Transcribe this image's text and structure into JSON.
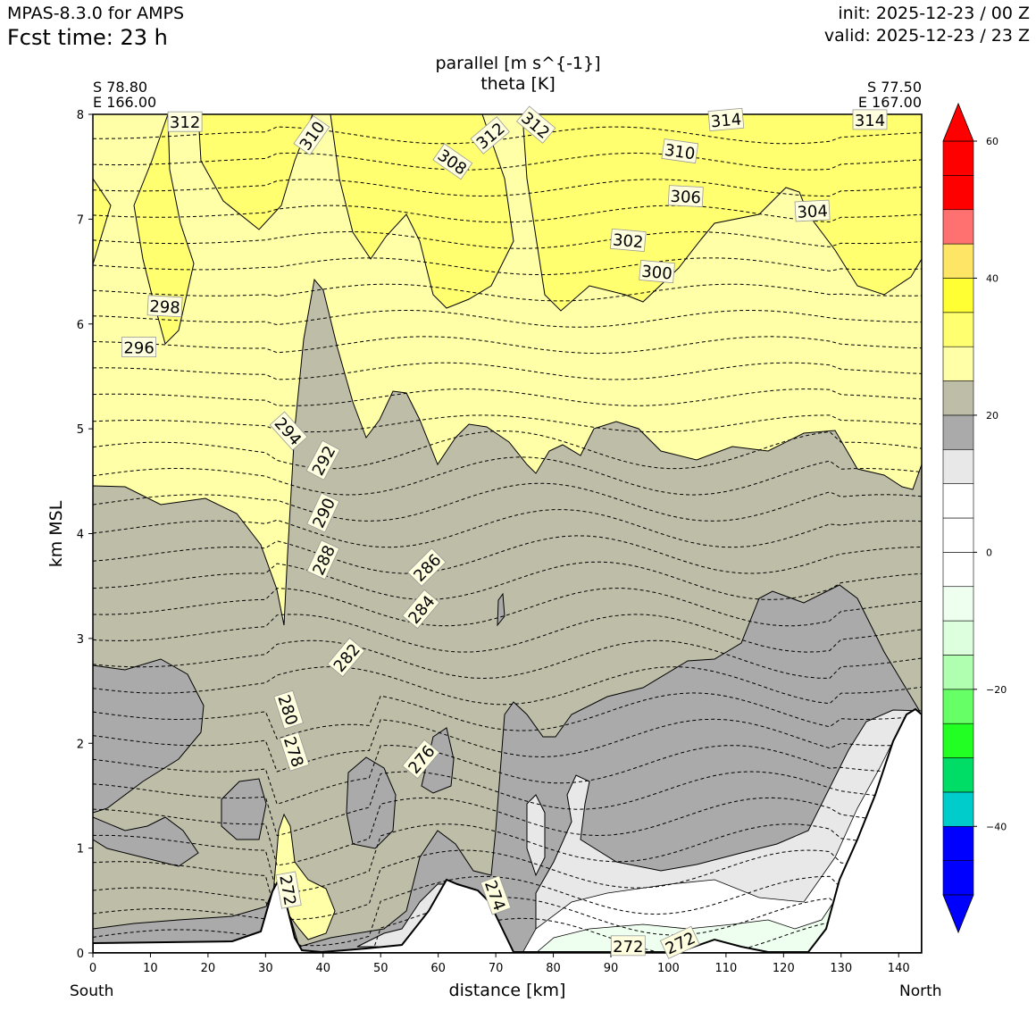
{
  "header": {
    "model": "MPAS-8.3.0 for AMPS",
    "fcst_time": "Fcst time:   23 h",
    "init": "init: 2025-12-23 / 00 Z",
    "valid": "valid: 2025-12-23 / 23 Z"
  },
  "chart_data": {
    "type": "contour-cross-section",
    "title": [
      "parallel [m s^{-1}]",
      "theta [K]"
    ],
    "xlabel": "distance [km]",
    "ylabel": "km MSL",
    "xlim": [
      0,
      144
    ],
    "ylim": [
      0,
      8
    ],
    "x_ticks": [
      0,
      10,
      20,
      30,
      40,
      50,
      60,
      70,
      80,
      90,
      100,
      110,
      120,
      130,
      140
    ],
    "y_ticks": [
      0,
      1,
      2,
      3,
      4,
      5,
      6,
      7,
      8
    ],
    "endpoints": {
      "left": {
        "lat": "S 78.80",
        "lon": "E 166.00",
        "label": "South"
      },
      "right": {
        "lat": "S 77.50",
        "lon": "E 167.00",
        "label": "North"
      }
    },
    "colorbar": {
      "levels": [
        -55,
        -50,
        -45,
        -40,
        -35,
        -30,
        -25,
        -20,
        -15,
        -10,
        -5,
        0,
        5,
        10,
        15,
        20,
        25,
        30,
        35,
        40,
        45,
        50,
        55,
        60
      ],
      "colors": [
        "#0000ff",
        "#0000ff",
        "#00cccc",
        "#00dd66",
        "#22ff22",
        "#66ff66",
        "#b0ffb0",
        "#ddffdd",
        "#eefff0",
        "#ffffff",
        "#ffffff",
        "#ffffff",
        "#e8e8e8",
        "#aaaaaa",
        "#bebea8",
        "#ffffa8",
        "#ffff70",
        "#ffff33",
        "#ffe566",
        "#ff7070",
        "#ff0000"
      ],
      "ticks": [
        -40,
        -20,
        0,
        20,
        40,
        60
      ],
      "tick_labels": [
        "−40",
        "−20",
        "0",
        "20",
        "40",
        "60"
      ],
      "extend": "both"
    },
    "theta_contour_labels": [
      {
        "value": "312",
        "x": 16,
        "z": 7.93,
        "angle": 0
      },
      {
        "value": "310",
        "x": 38,
        "z": 7.8,
        "angle": -55
      },
      {
        "value": "308",
        "x": 62.5,
        "z": 7.55,
        "angle": 35
      },
      {
        "value": "312",
        "x": 69,
        "z": 7.8,
        "angle": -40
      },
      {
        "value": "312",
        "x": 77,
        "z": 7.9,
        "angle": 40
      },
      {
        "value": "314",
        "x": 110,
        "z": 7.95,
        "angle": -5
      },
      {
        "value": "314",
        "x": 135,
        "z": 7.95,
        "angle": 0
      },
      {
        "value": "310",
        "x": 102,
        "z": 7.65,
        "angle": 8
      },
      {
        "value": "306",
        "x": 103,
        "z": 7.22,
        "angle": 3
      },
      {
        "value": "304",
        "x": 125,
        "z": 7.08,
        "angle": -3
      },
      {
        "value": "302",
        "x": 93,
        "z": 6.8,
        "angle": 5
      },
      {
        "value": "300",
        "x": 98,
        "z": 6.5,
        "angle": 5
      },
      {
        "value": "298",
        "x": 12.5,
        "z": 6.17,
        "angle": 3
      },
      {
        "value": "296",
        "x": 8,
        "z": 5.78,
        "angle": 0
      },
      {
        "value": "294",
        "x": 34,
        "z": 4.98,
        "angle": 48
      },
      {
        "value": "292",
        "x": 40,
        "z": 4.7,
        "angle": -62
      },
      {
        "value": "290",
        "x": 40,
        "z": 4.2,
        "angle": -65
      },
      {
        "value": "288",
        "x": 40,
        "z": 3.75,
        "angle": -65
      },
      {
        "value": "286",
        "x": 58,
        "z": 3.68,
        "angle": -45
      },
      {
        "value": "284",
        "x": 57,
        "z": 3.28,
        "angle": -50
      },
      {
        "value": "282",
        "x": 44,
        "z": 2.82,
        "angle": -50
      },
      {
        "value": "280",
        "x": 34,
        "z": 2.32,
        "angle": 72
      },
      {
        "value": "278",
        "x": 35,
        "z": 1.92,
        "angle": 72
      },
      {
        "value": "276",
        "x": 57,
        "z": 1.85,
        "angle": -50
      },
      {
        "value": "274",
        "x": 70,
        "z": 0.55,
        "angle": 70
      },
      {
        "value": "272",
        "x": 34,
        "z": 0.6,
        "angle": 80
      },
      {
        "value": "272",
        "x": 93,
        "z": 0.07,
        "angle": 0
      },
      {
        "value": "272",
        "x": 102,
        "z": 0.1,
        "angle": -25
      }
    ]
  }
}
